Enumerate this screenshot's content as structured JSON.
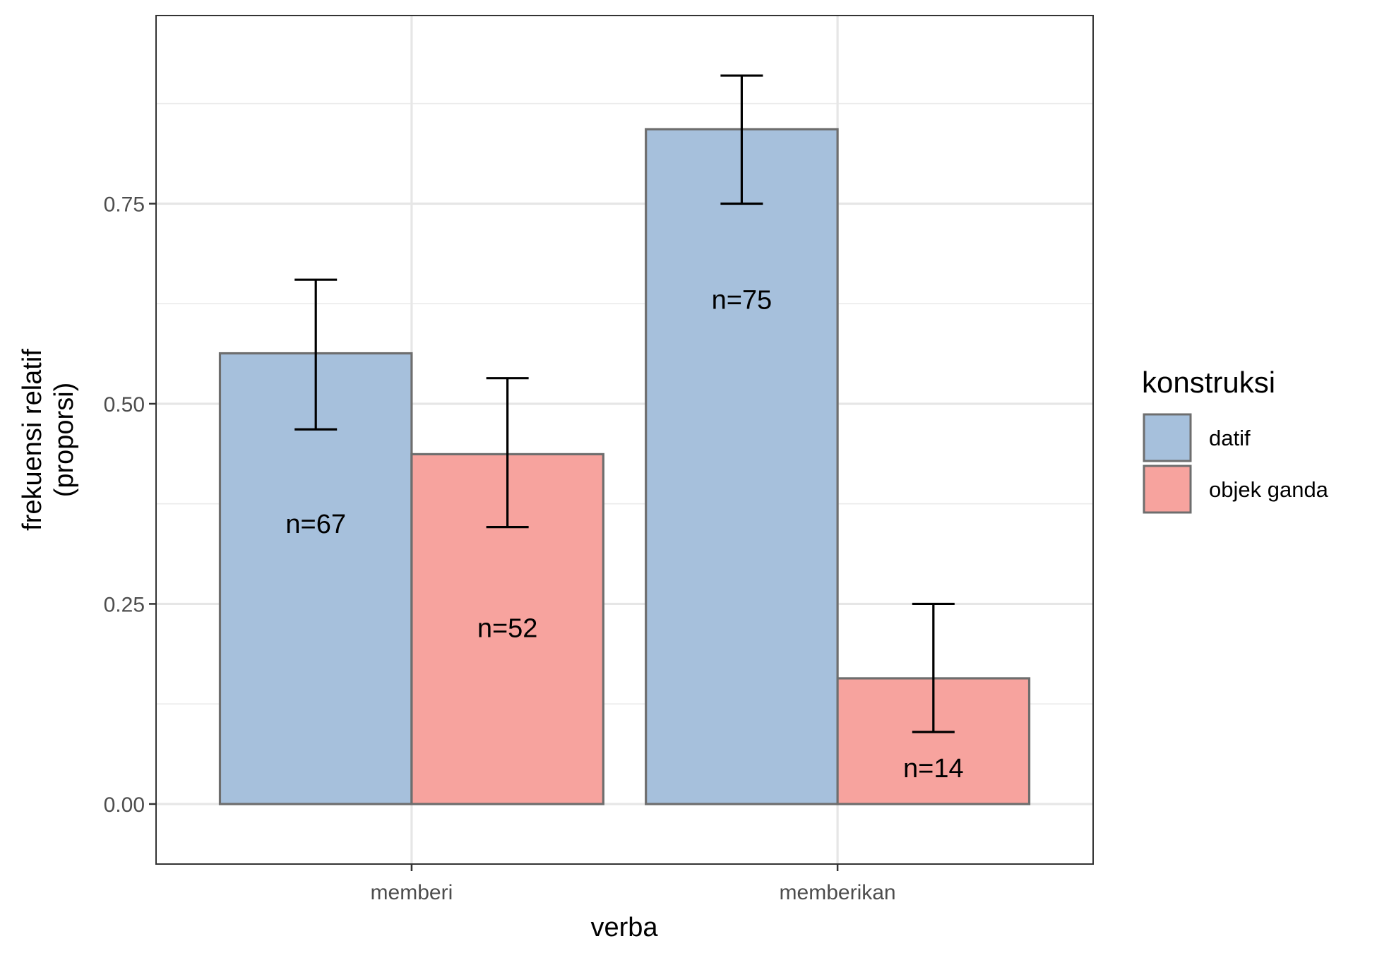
{
  "chart_data": {
    "type": "bar",
    "xlabel": "verba",
    "ylabel_lines": [
      "frekuensi relatif",
      "(proporsi)"
    ],
    "categories": [
      "memberi",
      "memberikan"
    ],
    "ylim": [
      -0.075,
      0.985
    ],
    "yticks": [
      0.0,
      0.25,
      0.5,
      0.75
    ],
    "ytick_labels": [
      "0.00",
      "0.25",
      "0.50",
      "0.75"
    ],
    "grid": true,
    "legend_position": "right",
    "legend_title": "konstruksi",
    "series": [
      {
        "name": "datif",
        "color": "#a6c0dc",
        "values": [
          0.563,
          0.843
        ],
        "ci_low": [
          0.468,
          0.75
        ],
        "ci_high": [
          0.655,
          0.91
        ],
        "labels": [
          "n=67",
          "n=75"
        ],
        "label_y": [
          0.35,
          0.63
        ]
      },
      {
        "name": "objek ganda",
        "color": "#f7a39e",
        "values": [
          0.437,
          0.157
        ],
        "ci_low": [
          0.346,
          0.09
        ],
        "ci_high": [
          0.532,
          0.25
        ],
        "labels": [
          "n=52",
          "n=14"
        ],
        "label_y": [
          0.22,
          0.045
        ]
      }
    ]
  }
}
